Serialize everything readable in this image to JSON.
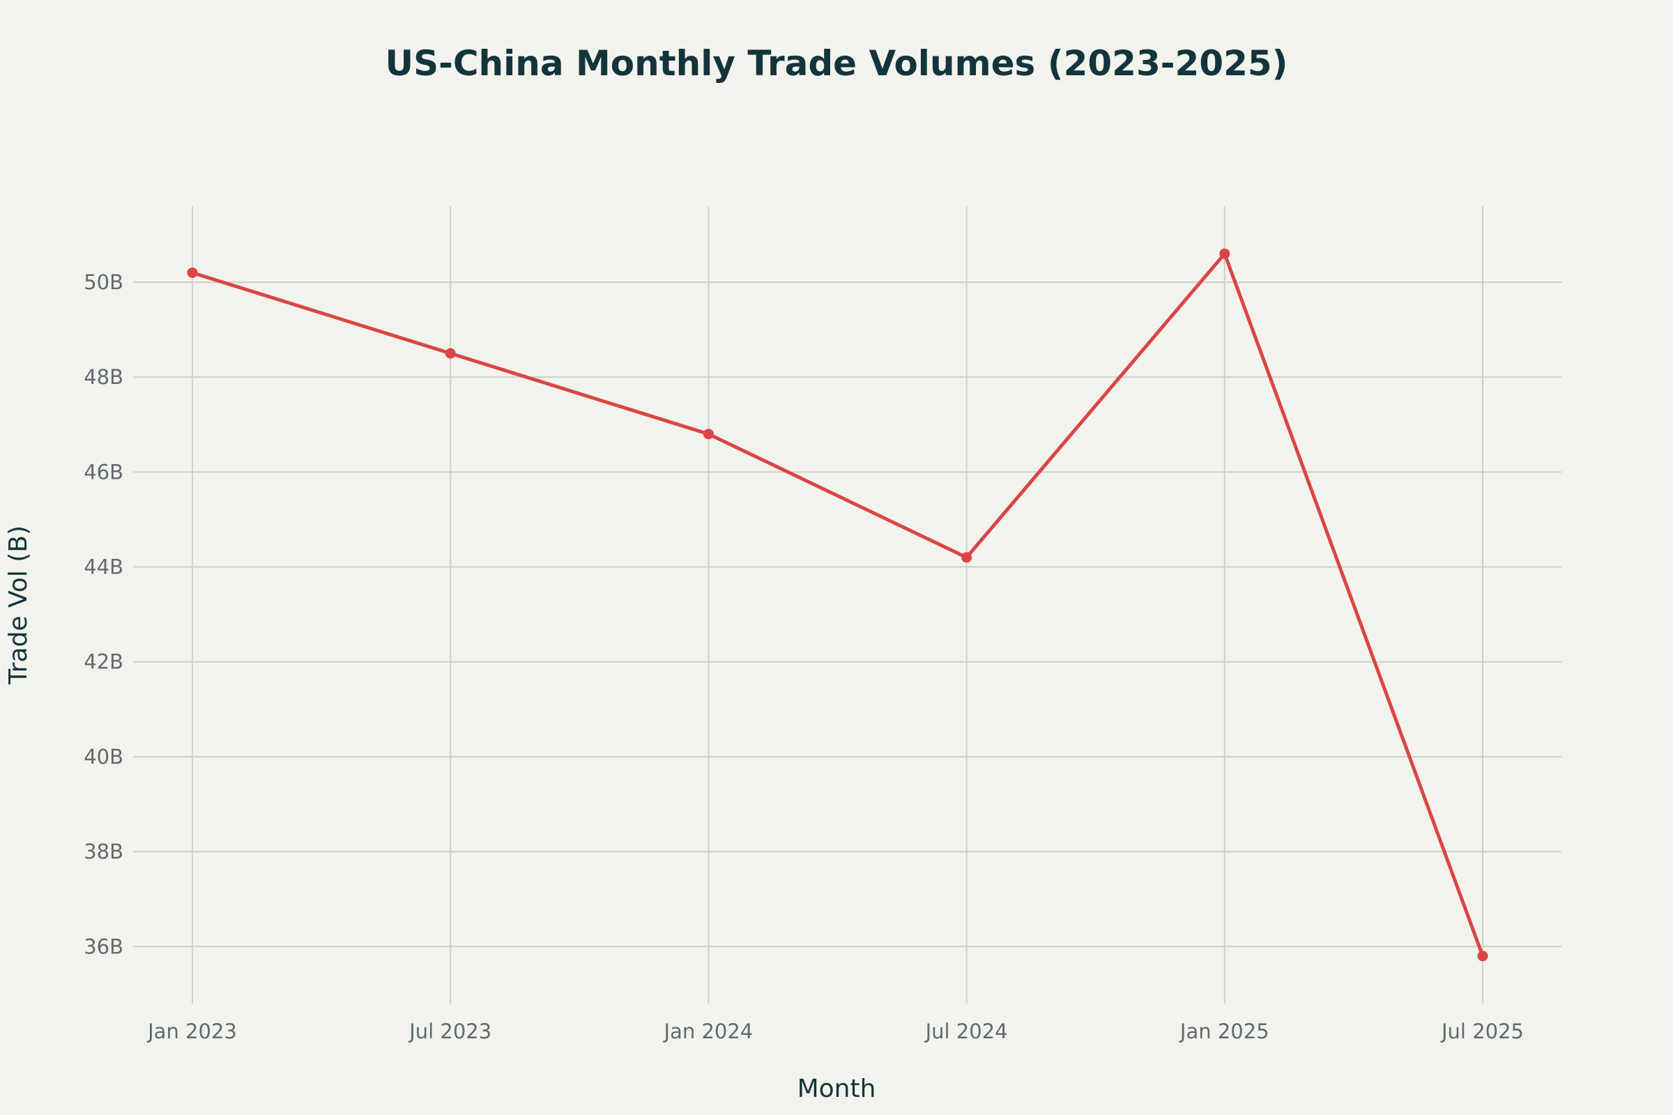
{
  "chart_data": {
    "type": "line",
    "title": "US-China Monthly Trade Volumes (2023-2025)",
    "xlabel": "Month",
    "ylabel": "Trade Vol (B)",
    "x": [
      "2023-01",
      "2023-07",
      "2024-01",
      "2024-07",
      "2025-01",
      "2025-07"
    ],
    "x_tick_labels": [
      "Jan 2023",
      "Jul 2023",
      "Jan 2024",
      "Jul 2024",
      "Jan 2025",
      "Jul 2025"
    ],
    "series": [
      {
        "values": [
          50.2,
          48.5,
          46.8,
          44.2,
          50.6,
          35.8
        ],
        "color": "#db4545"
      }
    ],
    "y_ticks": [
      36,
      38,
      40,
      42,
      44,
      46,
      48,
      50
    ],
    "y_tick_labels": [
      "36B",
      "38B",
      "40B",
      "42B",
      "44B",
      "46B",
      "48B",
      "50B"
    ],
    "ylim": [
      34.8,
      51.6
    ],
    "xlim": [
      "2022-11",
      "2025-08"
    ],
    "grid": true,
    "legend": "none",
    "background": "#f3f3ee",
    "grid_color": "#cfcfca"
  }
}
